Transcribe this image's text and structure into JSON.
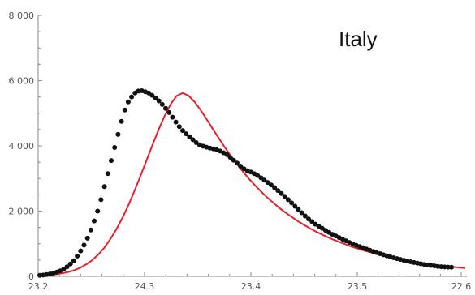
{
  "chart_data": {
    "type": "scatter",
    "title": "Italy",
    "xlabel": "",
    "ylabel": "",
    "x_tick_labels": [
      "23.2",
      "24.3",
      "23.4",
      "23.5",
      "22.6"
    ],
    "y_tick_labels": [
      "0",
      "2 000",
      "4 000",
      "6 000",
      "8 000"
    ],
    "y_tick_values": [
      0,
      2000,
      4000,
      6000,
      8000
    ],
    "ylim": [
      0,
      8000
    ],
    "grid": false,
    "legend": "none",
    "colors": {
      "points": "#111111",
      "fit": "#e8202a",
      "axis": "#888888"
    },
    "series": [
      {
        "kind": "points",
        "values": [
          30,
          40,
          55,
          75,
          100,
          130,
          170,
          220,
          290,
          380,
          480,
          620,
          780,
          960,
          1170,
          1420,
          1700,
          2000,
          2350,
          2750,
          3150,
          3550,
          3950,
          4350,
          4750,
          5100,
          5350,
          5500,
          5620,
          5680,
          5690,
          5660,
          5620,
          5550,
          5470,
          5380,
          5270,
          5150,
          5020,
          4880,
          4730,
          4590,
          4470,
          4370,
          4280,
          4190,
          4100,
          4030,
          3990,
          3960,
          3930,
          3910,
          3880,
          3840,
          3790,
          3730,
          3650,
          3560,
          3470,
          3380,
          3300,
          3240,
          3200,
          3150,
          3090,
          3020,
          2950,
          2880,
          2800,
          2720,
          2630,
          2540,
          2450,
          2350,
          2250,
          2150,
          2050,
          1950,
          1850,
          1760,
          1680,
          1600,
          1530,
          1470,
          1410,
          1350,
          1290,
          1240,
          1190,
          1140,
          1090,
          1040,
          995,
          955,
          915,
          880,
          840,
          800,
          765,
          730,
          695,
          660,
          630,
          600,
          572,
          545,
          520,
          495,
          470,
          448,
          426,
          405,
          385,
          367,
          350,
          335,
          320,
          306,
          296,
          288,
          282,
          278
        ]
      },
      {
        "kind": "fit",
        "values": [
          20,
          30,
          45,
          65,
          95,
          135,
          190,
          265,
          370,
          500,
          670,
          880,
          1140,
          1440,
          1790,
          2180,
          2610,
          3070,
          3550,
          4030,
          4490,
          4910,
          5270,
          5530,
          5620,
          5540,
          5350,
          5100,
          4820,
          4530,
          4240,
          3960,
          3700,
          3450,
          3220,
          3000,
          2800,
          2610,
          2430,
          2270,
          2110,
          1970,
          1840,
          1710,
          1600,
          1490,
          1390,
          1300,
          1210,
          1130,
          1060,
          990,
          920,
          860,
          800,
          750,
          700,
          655,
          610,
          570,
          532,
          497,
          464,
          434,
          405,
          378,
          353,
          330,
          308,
          288,
          270,
          255
        ]
      }
    ]
  }
}
